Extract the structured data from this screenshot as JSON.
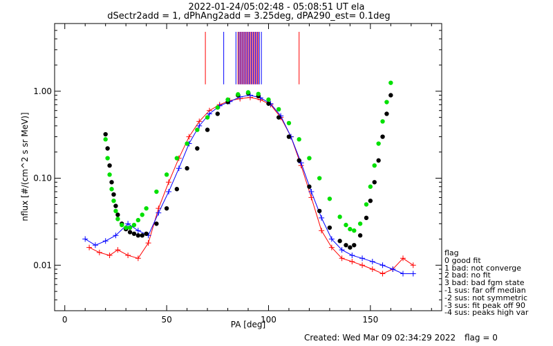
{
  "header": {
    "title_line1": "2022-01-24/05:02:48 - 05:08:51 UT ela",
    "title_line2": "dSectr2add = 1, dPhAng2add = 3.25deg, dPA290_est=   0.1deg"
  },
  "footer": {
    "created": "Created: Wed Mar 09 02:34:29 2022",
    "flag": "flag = 0"
  },
  "legend": {
    "title": "flag",
    "entries": [
      " 0 good fit",
      " 1 bad: not converge",
      " 2 bad: no fit",
      " 3 bad: bad fgm state",
      "-1 sus: far off median",
      "-2 sus: not symmetric",
      "-3 sus: fit peak off 90",
      "-4 sus: peaks high var"
    ]
  },
  "colors": {
    "red": "#ff0000",
    "blue": "#0000ff",
    "green": "#00e000",
    "black": "#000000"
  },
  "chart_data": {
    "type": "line",
    "xlabel": "PA [deg]",
    "ylabel": "nflux [#/(cm^2 s sr MeV)]",
    "xlim": [
      -5,
      185
    ],
    "ylim": [
      0.003,
      6.0
    ],
    "yscale": "log",
    "x_ticks": [
      0,
      50,
      100,
      150
    ],
    "x_tick_labels": [
      "0",
      "50",
      "100",
      "150"
    ],
    "y_ticks": [
      0.01,
      0.1,
      1.0
    ],
    "y_tick_labels": [
      "0.01",
      "0.10",
      "1.00"
    ],
    "series": [
      {
        "color": "red",
        "style": "line+plus",
        "x": [
          12,
          17,
          22,
          26,
          31,
          36,
          41,
          46,
          51,
          56,
          61,
          66,
          71,
          76,
          81,
          86,
          91,
          96,
          101,
          106,
          111,
          116,
          121,
          126,
          131,
          136,
          141,
          146,
          151,
          156,
          161,
          166,
          171
        ],
        "y": [
          0.016,
          0.014,
          0.013,
          0.015,
          0.013,
          0.012,
          0.018,
          0.045,
          0.09,
          0.17,
          0.3,
          0.45,
          0.6,
          0.7,
          0.78,
          0.82,
          0.85,
          0.8,
          0.7,
          0.5,
          0.3,
          0.14,
          0.06,
          0.025,
          0.016,
          0.012,
          0.011,
          0.01,
          0.009,
          0.008,
          0.009,
          0.012,
          0.01
        ]
      },
      {
        "color": "blue",
        "style": "line+plus",
        "x": [
          10,
          15,
          20,
          25,
          31,
          36,
          41,
          46,
          51,
          56,
          61,
          66,
          71,
          76,
          81,
          86,
          91,
          96,
          101,
          106,
          111,
          116,
          121,
          126,
          131,
          136,
          141,
          146,
          151,
          156,
          161,
          166,
          171
        ],
        "y": [
          0.02,
          0.017,
          0.019,
          0.022,
          0.03,
          0.025,
          0.022,
          0.04,
          0.07,
          0.13,
          0.25,
          0.4,
          0.55,
          0.68,
          0.76,
          0.86,
          0.9,
          0.84,
          0.72,
          0.52,
          0.3,
          0.15,
          0.07,
          0.035,
          0.02,
          0.015,
          0.013,
          0.012,
          0.011,
          0.01,
          0.009,
          0.008,
          0.008
        ]
      },
      {
        "name": "",
        "color": "black",
        "style": "dots",
        "x": [
          20,
          21,
          22,
          23,
          24,
          25,
          26,
          28,
          30,
          32,
          34,
          36,
          38,
          40,
          45,
          50,
          55,
          60,
          65,
          70,
          75,
          80,
          85,
          90,
          95,
          100,
          105,
          110,
          115,
          120,
          125,
          130,
          135,
          138,
          140,
          142,
          145,
          148,
          150,
          152,
          154,
          156,
          158,
          160
        ],
        "y": [
          0.32,
          0.22,
          0.14,
          0.09,
          0.065,
          0.048,
          0.038,
          0.03,
          0.026,
          0.024,
          0.023,
          0.022,
          0.022,
          0.023,
          0.03,
          0.045,
          0.075,
          0.13,
          0.22,
          0.36,
          0.55,
          0.75,
          0.9,
          0.95,
          0.88,
          0.72,
          0.5,
          0.3,
          0.16,
          0.08,
          0.042,
          0.027,
          0.019,
          0.017,
          0.016,
          0.017,
          0.022,
          0.035,
          0.055,
          0.09,
          0.16,
          0.3,
          0.55,
          0.9
        ]
      },
      {
        "name": "",
        "color": "green",
        "style": "dots",
        "x": [
          20,
          21,
          22,
          23,
          24,
          25,
          26,
          28,
          30,
          32,
          34,
          36,
          38,
          40,
          45,
          50,
          55,
          60,
          65,
          70,
          75,
          80,
          85,
          90,
          95,
          100,
          105,
          110,
          115,
          120,
          125,
          130,
          135,
          138,
          140,
          142,
          145,
          148,
          150,
          152,
          154,
          156,
          158,
          160
        ],
        "y": [
          0.28,
          0.17,
          0.11,
          0.075,
          0.055,
          0.042,
          0.034,
          0.029,
          0.027,
          0.027,
          0.029,
          0.033,
          0.038,
          0.045,
          0.07,
          0.11,
          0.17,
          0.25,
          0.36,
          0.5,
          0.65,
          0.8,
          0.92,
          0.97,
          0.93,
          0.8,
          0.62,
          0.43,
          0.28,
          0.17,
          0.1,
          0.058,
          0.036,
          0.029,
          0.026,
          0.025,
          0.03,
          0.05,
          0.08,
          0.14,
          0.25,
          0.45,
          0.75,
          1.25
        ]
      }
    ],
    "upper_ticks": {
      "red_x": [
        69,
        85,
        86,
        87,
        88,
        89,
        90,
        91,
        92,
        93,
        94,
        95,
        115
      ],
      "blue_x": [
        78,
        84,
        85.5,
        86.5,
        87.5,
        88.5,
        89.5,
        90.5,
        91.5,
        92.5,
        93.5,
        94.5,
        95.5,
        96.5
      ]
    }
  }
}
